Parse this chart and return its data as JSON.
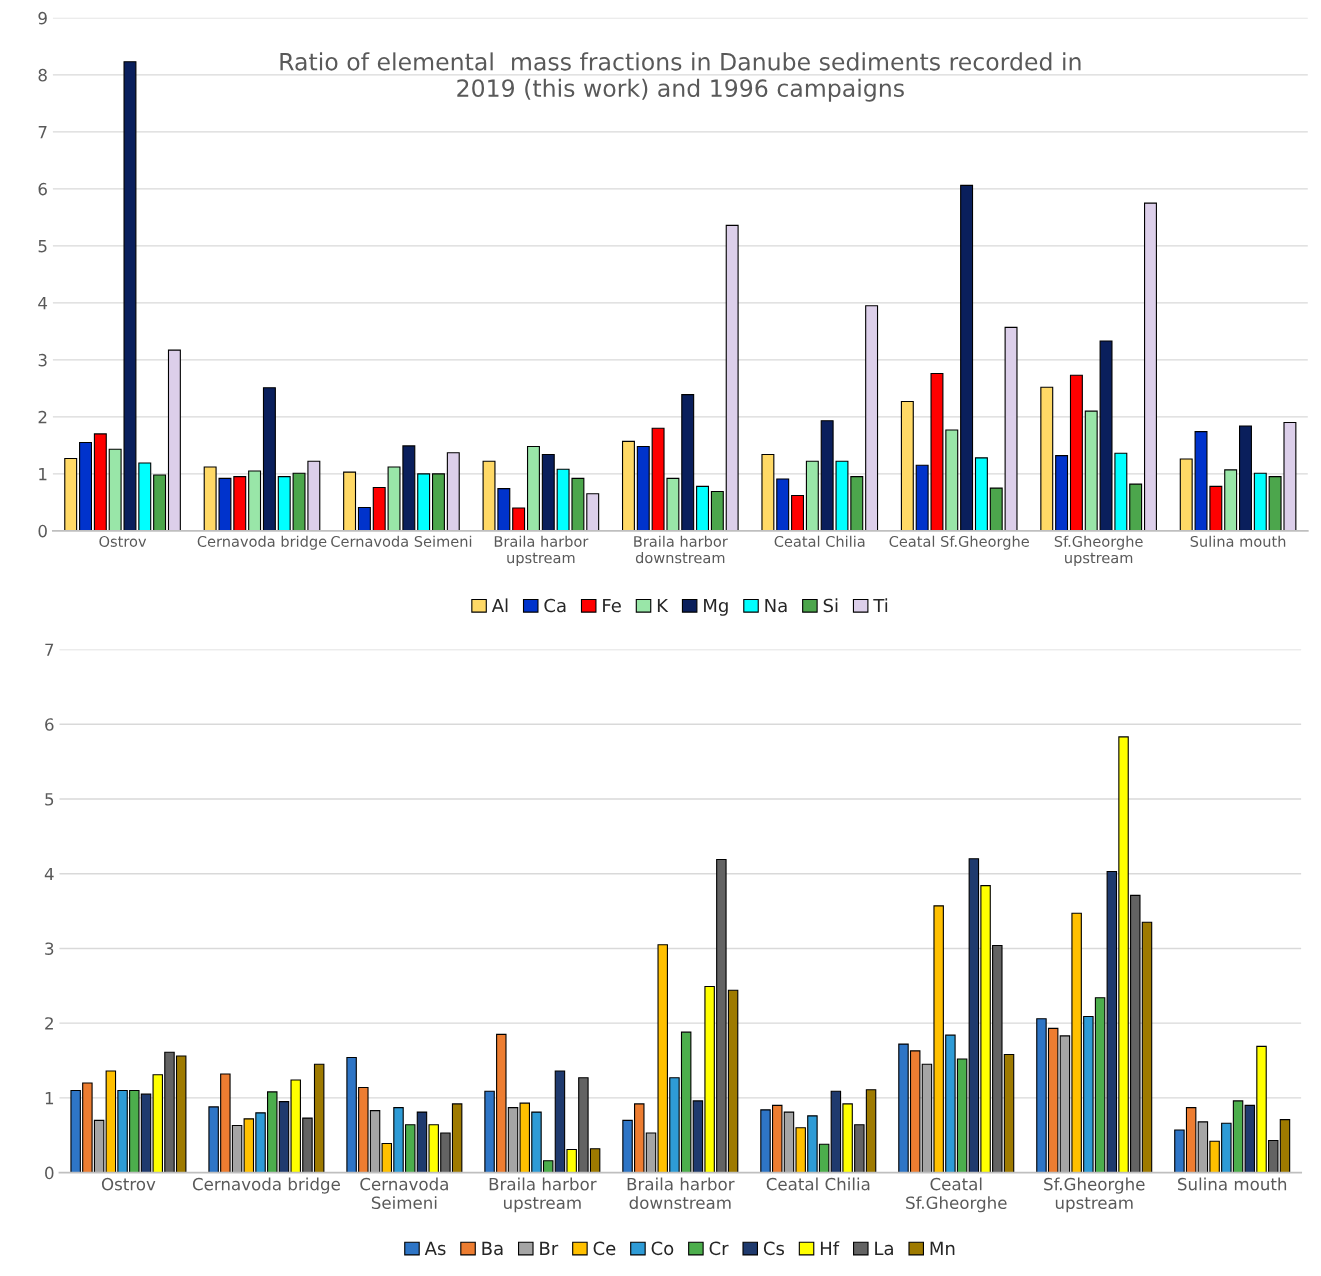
{
  "chart_data": [
    {
      "type": "bar",
      "title": "Ratio of elemental  mass fractions in Danube sediments recorded in\n2019 (this work) and 1996 campaigns",
      "categories": [
        "Ostrov",
        "Cernavoda bridge",
        "Cernavoda Seimeni",
        "Braila harbor\nupstream",
        "Braila harbor\ndownstream",
        "Ceatal Chilia",
        "Ceatal Sf.Gheorghe",
        "Sf.Gheorghe\nupstream",
        "Sulina mouth"
      ],
      "series": [
        {
          "name": "Al",
          "color": "#ffd966",
          "values": [
            1.27,
            1.12,
            1.03,
            1.22,
            1.57,
            1.34,
            2.27,
            2.52,
            1.26
          ]
        },
        {
          "name": "Ca",
          "color": "#0033cc",
          "values": [
            1.55,
            0.92,
            0.41,
            0.74,
            1.48,
            0.91,
            1.15,
            1.32,
            1.74
          ]
        },
        {
          "name": "Fe",
          "color": "#ff0000",
          "values": [
            1.7,
            0.95,
            0.76,
            0.4,
            1.8,
            0.62,
            2.76,
            2.73,
            0.78
          ]
        },
        {
          "name": "K",
          "color": "#99e6a8",
          "values": [
            1.43,
            1.05,
            1.12,
            1.48,
            0.92,
            1.22,
            1.77,
            2.1,
            1.07
          ]
        },
        {
          "name": "Mg",
          "color": "#0a1f5c",
          "values": [
            8.23,
            2.51,
            1.49,
            1.34,
            2.39,
            1.93,
            6.06,
            3.33,
            1.84
          ]
        },
        {
          "name": "Na",
          "color": "#00ffff",
          "values": [
            1.19,
            0.95,
            1.0,
            1.08,
            0.78,
            1.22,
            1.28,
            1.36,
            1.01
          ]
        },
        {
          "name": "Si",
          "color": "#4ca64c",
          "values": [
            0.98,
            1.01,
            1.0,
            0.92,
            0.69,
            0.95,
            0.75,
            0.82,
            0.95
          ]
        },
        {
          "name": "Ti",
          "color": "#dccfea",
          "values": [
            3.17,
            1.22,
            1.37,
            0.65,
            5.36,
            3.95,
            3.57,
            5.75,
            1.9
          ]
        }
      ],
      "ylim": [
        0,
        9
      ],
      "yticks": [
        0,
        1,
        2,
        3,
        4,
        5,
        6,
        7,
        8,
        9
      ],
      "grid": "y",
      "legend": "bottom"
    },
    {
      "type": "bar",
      "categories": [
        "Ostrov",
        "Cernavoda bridge",
        "Cernavoda\nSeimeni",
        "Braila harbor\nupstream",
        "Braila harbor\ndownstream",
        "Ceatal Chilia",
        "Ceatal\nSf.Gheorghe",
        "Sf.Gheorghe\nupstream",
        "Sulina mouth"
      ],
      "series": [
        {
          "name": "As",
          "color": "#2e75c6",
          "values": [
            1.1,
            0.88,
            1.54,
            1.09,
            0.7,
            0.84,
            1.72,
            2.06,
            0.57
          ]
        },
        {
          "name": "Ba",
          "color": "#ed7d31",
          "values": [
            1.2,
            1.32,
            1.14,
            1.85,
            0.92,
            0.9,
            1.63,
            1.93,
            0.87
          ]
        },
        {
          "name": "Br",
          "color": "#a5a5a5",
          "values": [
            0.7,
            0.63,
            0.83,
            0.87,
            0.53,
            0.81,
            1.45,
            1.83,
            0.68
          ]
        },
        {
          "name": "Ce",
          "color": "#ffc000",
          "values": [
            1.36,
            0.72,
            0.39,
            0.93,
            3.05,
            0.6,
            3.57,
            3.47,
            0.42
          ]
        },
        {
          "name": "Co",
          "color": "#2e9bd6",
          "values": [
            1.1,
            0.8,
            0.87,
            0.81,
            1.27,
            0.76,
            1.84,
            2.09,
            0.66
          ]
        },
        {
          "name": "Cr",
          "color": "#4cae4c",
          "values": [
            1.1,
            1.08,
            0.64,
            0.16,
            1.88,
            0.38,
            1.52,
            2.34,
            0.96
          ]
        },
        {
          "name": "Cs",
          "color": "#1f3a6e",
          "values": [
            1.05,
            0.95,
            0.81,
            1.36,
            0.96,
            1.09,
            4.2,
            4.03,
            0.9
          ]
        },
        {
          "name": "Hf",
          "color": "#ffff00",
          "values": [
            1.31,
            1.24,
            0.64,
            0.31,
            2.49,
            0.92,
            3.84,
            5.83,
            1.69
          ]
        },
        {
          "name": "La",
          "color": "#636363",
          "values": [
            1.61,
            0.73,
            0.53,
            1.27,
            4.19,
            0.64,
            3.04,
            3.71,
            0.43
          ]
        },
        {
          "name": "Mn",
          "color": "#9e7a00",
          "values": [
            1.56,
            1.45,
            0.92,
            0.32,
            2.44,
            1.11,
            1.58,
            3.35,
            0.71
          ]
        }
      ],
      "ylim": [
        0,
        7
      ],
      "yticks": [
        0,
        1,
        2,
        3,
        4,
        5,
        6,
        7
      ],
      "grid": "y",
      "legend": "bottom"
    }
  ]
}
